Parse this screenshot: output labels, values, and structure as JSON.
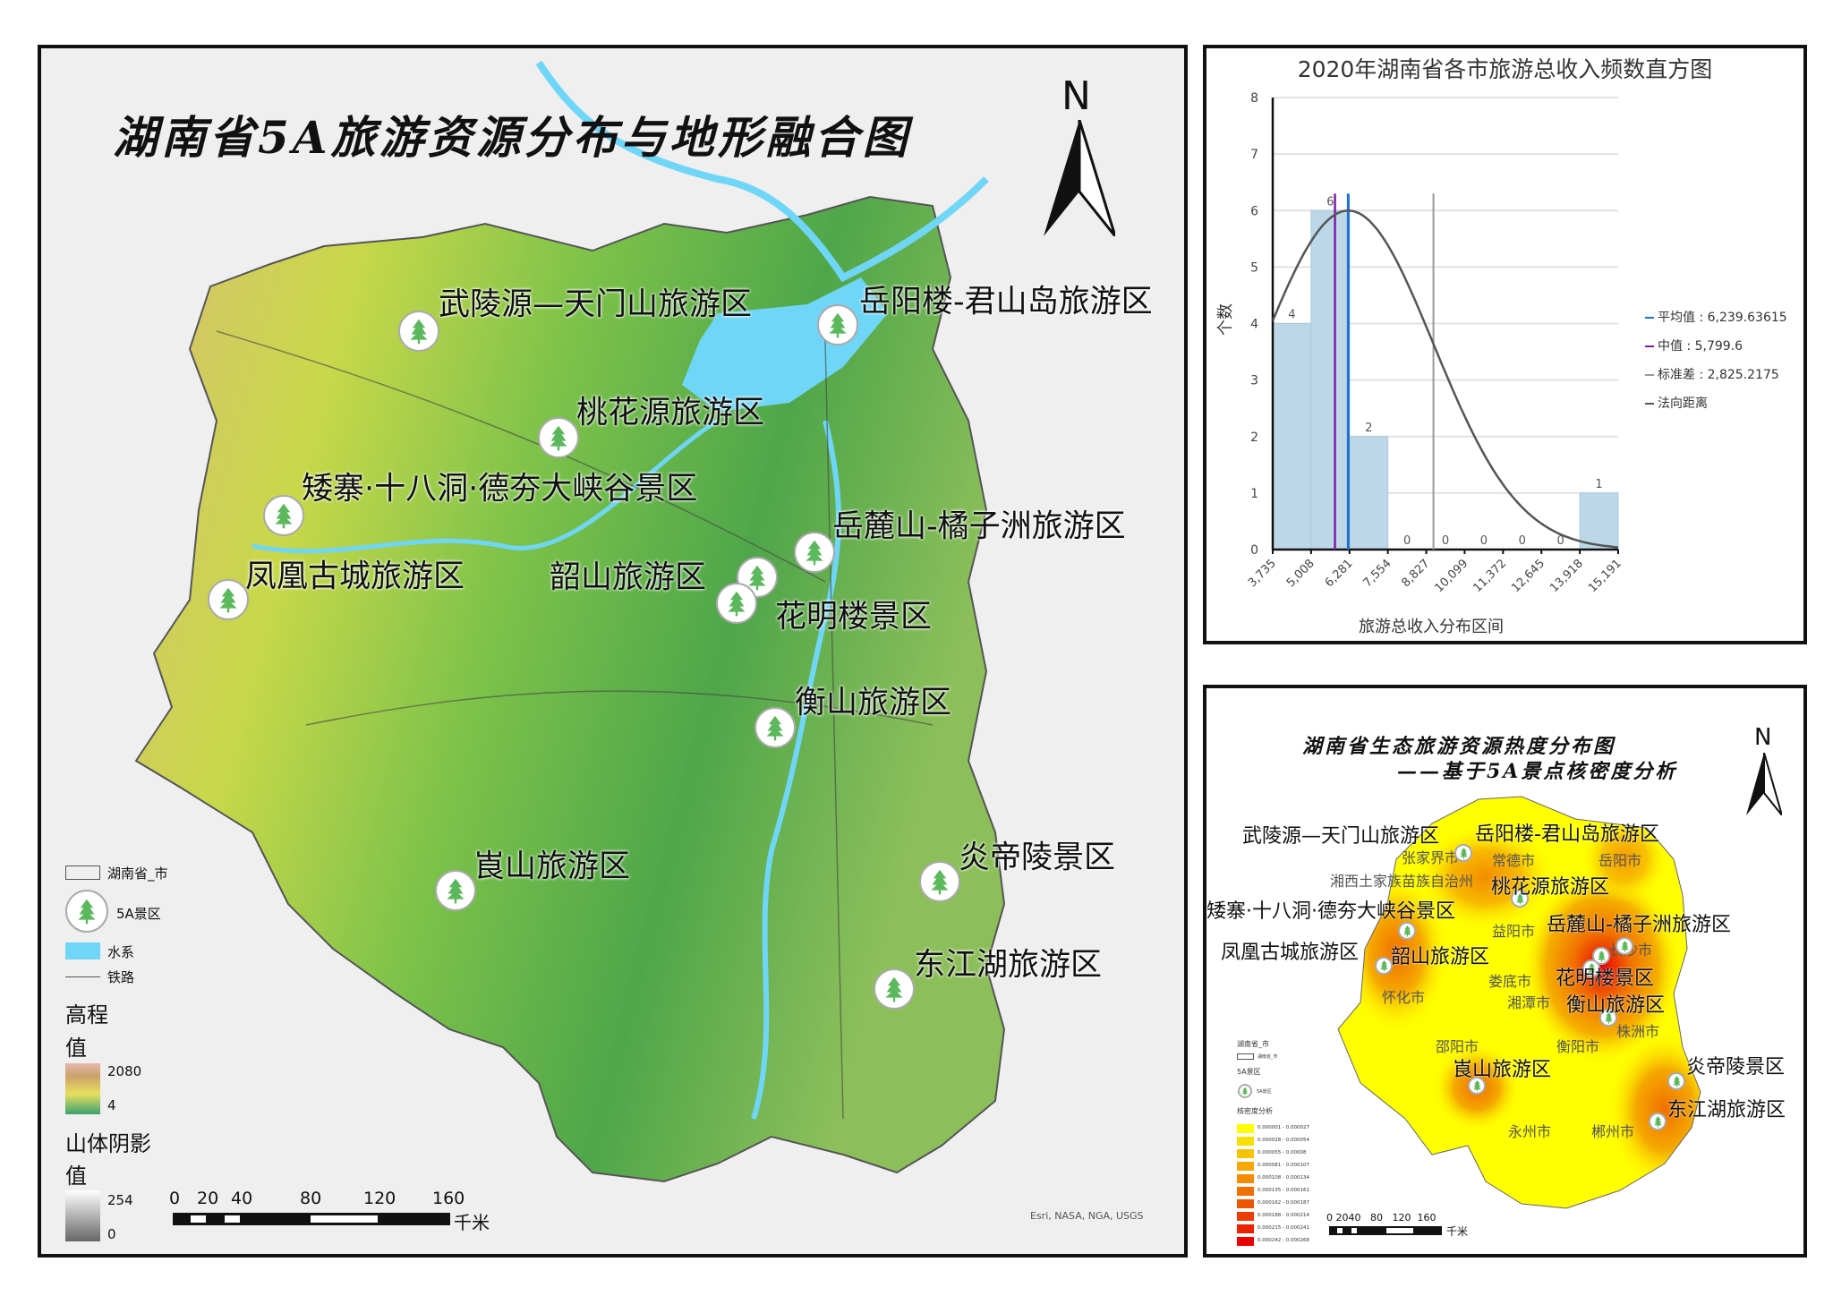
{
  "main_map": {
    "title": "湖南省5A旅游资源分布与地形融合图",
    "north": "N",
    "attractions": [
      "武陵源—天门山旅游区",
      "岳阳楼-君山岛旅游区",
      "桃花源旅游区",
      "矮寨·十八洞·德夯大峡谷景区",
      "岳麓山-橘子洲旅游区",
      "凤凰古城旅游区",
      "韶山旅游区",
      "花明楼景区",
      "衡山旅游区",
      "崀山旅游区",
      "炎帝陵景区",
      "东江湖旅游区"
    ],
    "legend": {
      "boundary": "湖南省_市",
      "scenic": "5A景区",
      "water": "水系",
      "rail": "铁路",
      "elev_title": "高程",
      "elev_sub": "值",
      "elev_high": "2080",
      "elev_low": "4",
      "hill_title": "山体阴影",
      "hill_sub": "值",
      "hill_high": "254",
      "hill_low": "0"
    },
    "scale": {
      "ticks": [
        "0",
        "20",
        "40",
        "80",
        "120",
        "160"
      ],
      "unit": "千米"
    },
    "credit": "Esri, NASA, NGA, USGS",
    "colors": {
      "water": "#6fd6f7",
      "lowland": "#4caf3f",
      "highland": "#c9a26a",
      "tree": "#5cb85c"
    }
  },
  "chart_data": {
    "type": "bar",
    "title": "2020年湖南省各市旅游总收入频数直方图",
    "xlabel": "旅游总收入分布区间",
    "ylabel": "个数",
    "bin_edges": [
      "3,735",
      "5,008",
      "6,281",
      "7,554",
      "8,827",
      "10,099",
      "11,372",
      "12,645",
      "13,918",
      "15,191"
    ],
    "bin_edge_values": [
      3735,
      5008,
      6281,
      7554,
      8827,
      10099,
      11372,
      12645,
      13918,
      15191
    ],
    "values": [
      4,
      6,
      2,
      0,
      0,
      0,
      0,
      0,
      1
    ],
    "ylim": [
      0,
      8
    ],
    "yticks": [
      "0",
      "1",
      "2",
      "3",
      "4",
      "5",
      "6",
      "7",
      "8"
    ],
    "grid": true,
    "mean": 6239.63615,
    "median": 5799.6,
    "std": 2825.2175,
    "normal_curve_peak": 6,
    "legend_position": "right",
    "legend": [
      {
        "label": "平均值 : 6,239.63615",
        "color": "#1f6fd1"
      },
      {
        "label": "中值 : 5,799.6",
        "color": "#7a1fa2"
      },
      {
        "label": "标准差 : 2,825.2175",
        "color": "#999999"
      },
      {
        "label": "法向距离",
        "color": "#555555"
      }
    ],
    "bar_color": "#bcd8e8"
  },
  "heat_map": {
    "title1": "湖南省生态旅游资源热度分布图",
    "title2": "——基于5A景点核密度分析",
    "north": "N",
    "attractions": [
      "武陵源—天门山旅游区",
      "岳阳楼-君山岛旅游区",
      "桃花源旅游区",
      "矮寨·十八洞·德夯大峡谷景区",
      "岳麓山-橘子洲旅游区",
      "凤凰古城旅游区",
      "韶山旅游区",
      "花明楼景区",
      "衡山旅游区",
      "崀山旅游区",
      "炎帝陵景区",
      "东江湖旅游区"
    ],
    "cities": [
      "张家界市",
      "常德市",
      "岳阳市",
      "湘西土家族苗族自治州",
      "益阳市",
      "长沙市",
      "娄底市",
      "怀化市",
      "湘潭市",
      "株洲市",
      "邵阳市",
      "衡阳市",
      "永州市",
      "郴州市"
    ],
    "legend": {
      "boundary_title": "湖南省_市",
      "boundary_item": "湖南省_市",
      "scenic_title": "5A景区",
      "scenic_item": "5A景区",
      "kde_title": "核密度分析",
      "classes": [
        {
          "label": "0.000001 - 0.000027",
          "color": "#ffff00"
        },
        {
          "label": "0.000028 - 0.000054",
          "color": "#f7e000"
        },
        {
          "label": "0.000055 - 0.00008",
          "color": "#f5c400"
        },
        {
          "label": "0.000081 - 0.000107",
          "color": "#f5a800"
        },
        {
          "label": "0.000108 - 0.000134",
          "color": "#f58c00"
        },
        {
          "label": "0.000135 - 0.000161",
          "color": "#f07000"
        },
        {
          "label": "0.000162 - 0.000187",
          "color": "#ee5500"
        },
        {
          "label": "0.000188 - 0.000214",
          "color": "#ec3c00"
        },
        {
          "label": "0.000215 - 0.000241",
          "color": "#eb2200"
        },
        {
          "label": "0.000242 - 0.000268",
          "color": "#ea0000"
        }
      ]
    },
    "scale": {
      "ticks": "0 2040   80   120  160",
      "unit": "千米"
    }
  }
}
